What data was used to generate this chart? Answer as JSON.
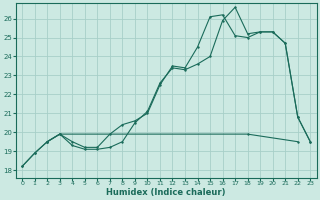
{
  "xlabel": "Humidex (Indice chaleur)",
  "xlim": [
    -0.5,
    23.5
  ],
  "ylim": [
    17.6,
    26.8
  ],
  "yticks": [
    18,
    19,
    20,
    21,
    22,
    23,
    24,
    25,
    26
  ],
  "xticks": [
    0,
    1,
    2,
    3,
    4,
    5,
    6,
    7,
    8,
    9,
    10,
    11,
    12,
    13,
    14,
    15,
    16,
    17,
    18,
    19,
    20,
    21,
    22,
    23
  ],
  "bg_color": "#cce9e2",
  "grid_color": "#a8cfc8",
  "line_color": "#1a6b5a",
  "line1_x": [
    0,
    1,
    2,
    3,
    4,
    5,
    6,
    7,
    8,
    9,
    10,
    11,
    12,
    13,
    14,
    15,
    16,
    17,
    18,
    19,
    20,
    21,
    22,
    23
  ],
  "line1_y": [
    18.2,
    18.9,
    19.5,
    19.9,
    19.3,
    19.1,
    19.1,
    19.2,
    19.5,
    20.5,
    21.1,
    22.6,
    23.4,
    23.3,
    23.6,
    24.0,
    25.9,
    26.6,
    25.2,
    25.3,
    25.3,
    24.7,
    20.8,
    19.5
  ],
  "line2_x": [
    0,
    1,
    2,
    3,
    4,
    5,
    6,
    7,
    8,
    9,
    10,
    11,
    12,
    13,
    14,
    15,
    16,
    17,
    18,
    19,
    20,
    21,
    22,
    23
  ],
  "line2_y": [
    18.2,
    18.9,
    19.5,
    19.9,
    19.5,
    19.2,
    19.2,
    19.9,
    20.4,
    20.6,
    21.0,
    22.5,
    23.5,
    23.4,
    24.5,
    26.1,
    26.2,
    25.1,
    25.0,
    25.3,
    25.3,
    24.7,
    20.8,
    19.5
  ],
  "line3_x": [
    2,
    3,
    18,
    22
  ],
  "line3_y": [
    19.5,
    19.9,
    19.9,
    19.5
  ]
}
